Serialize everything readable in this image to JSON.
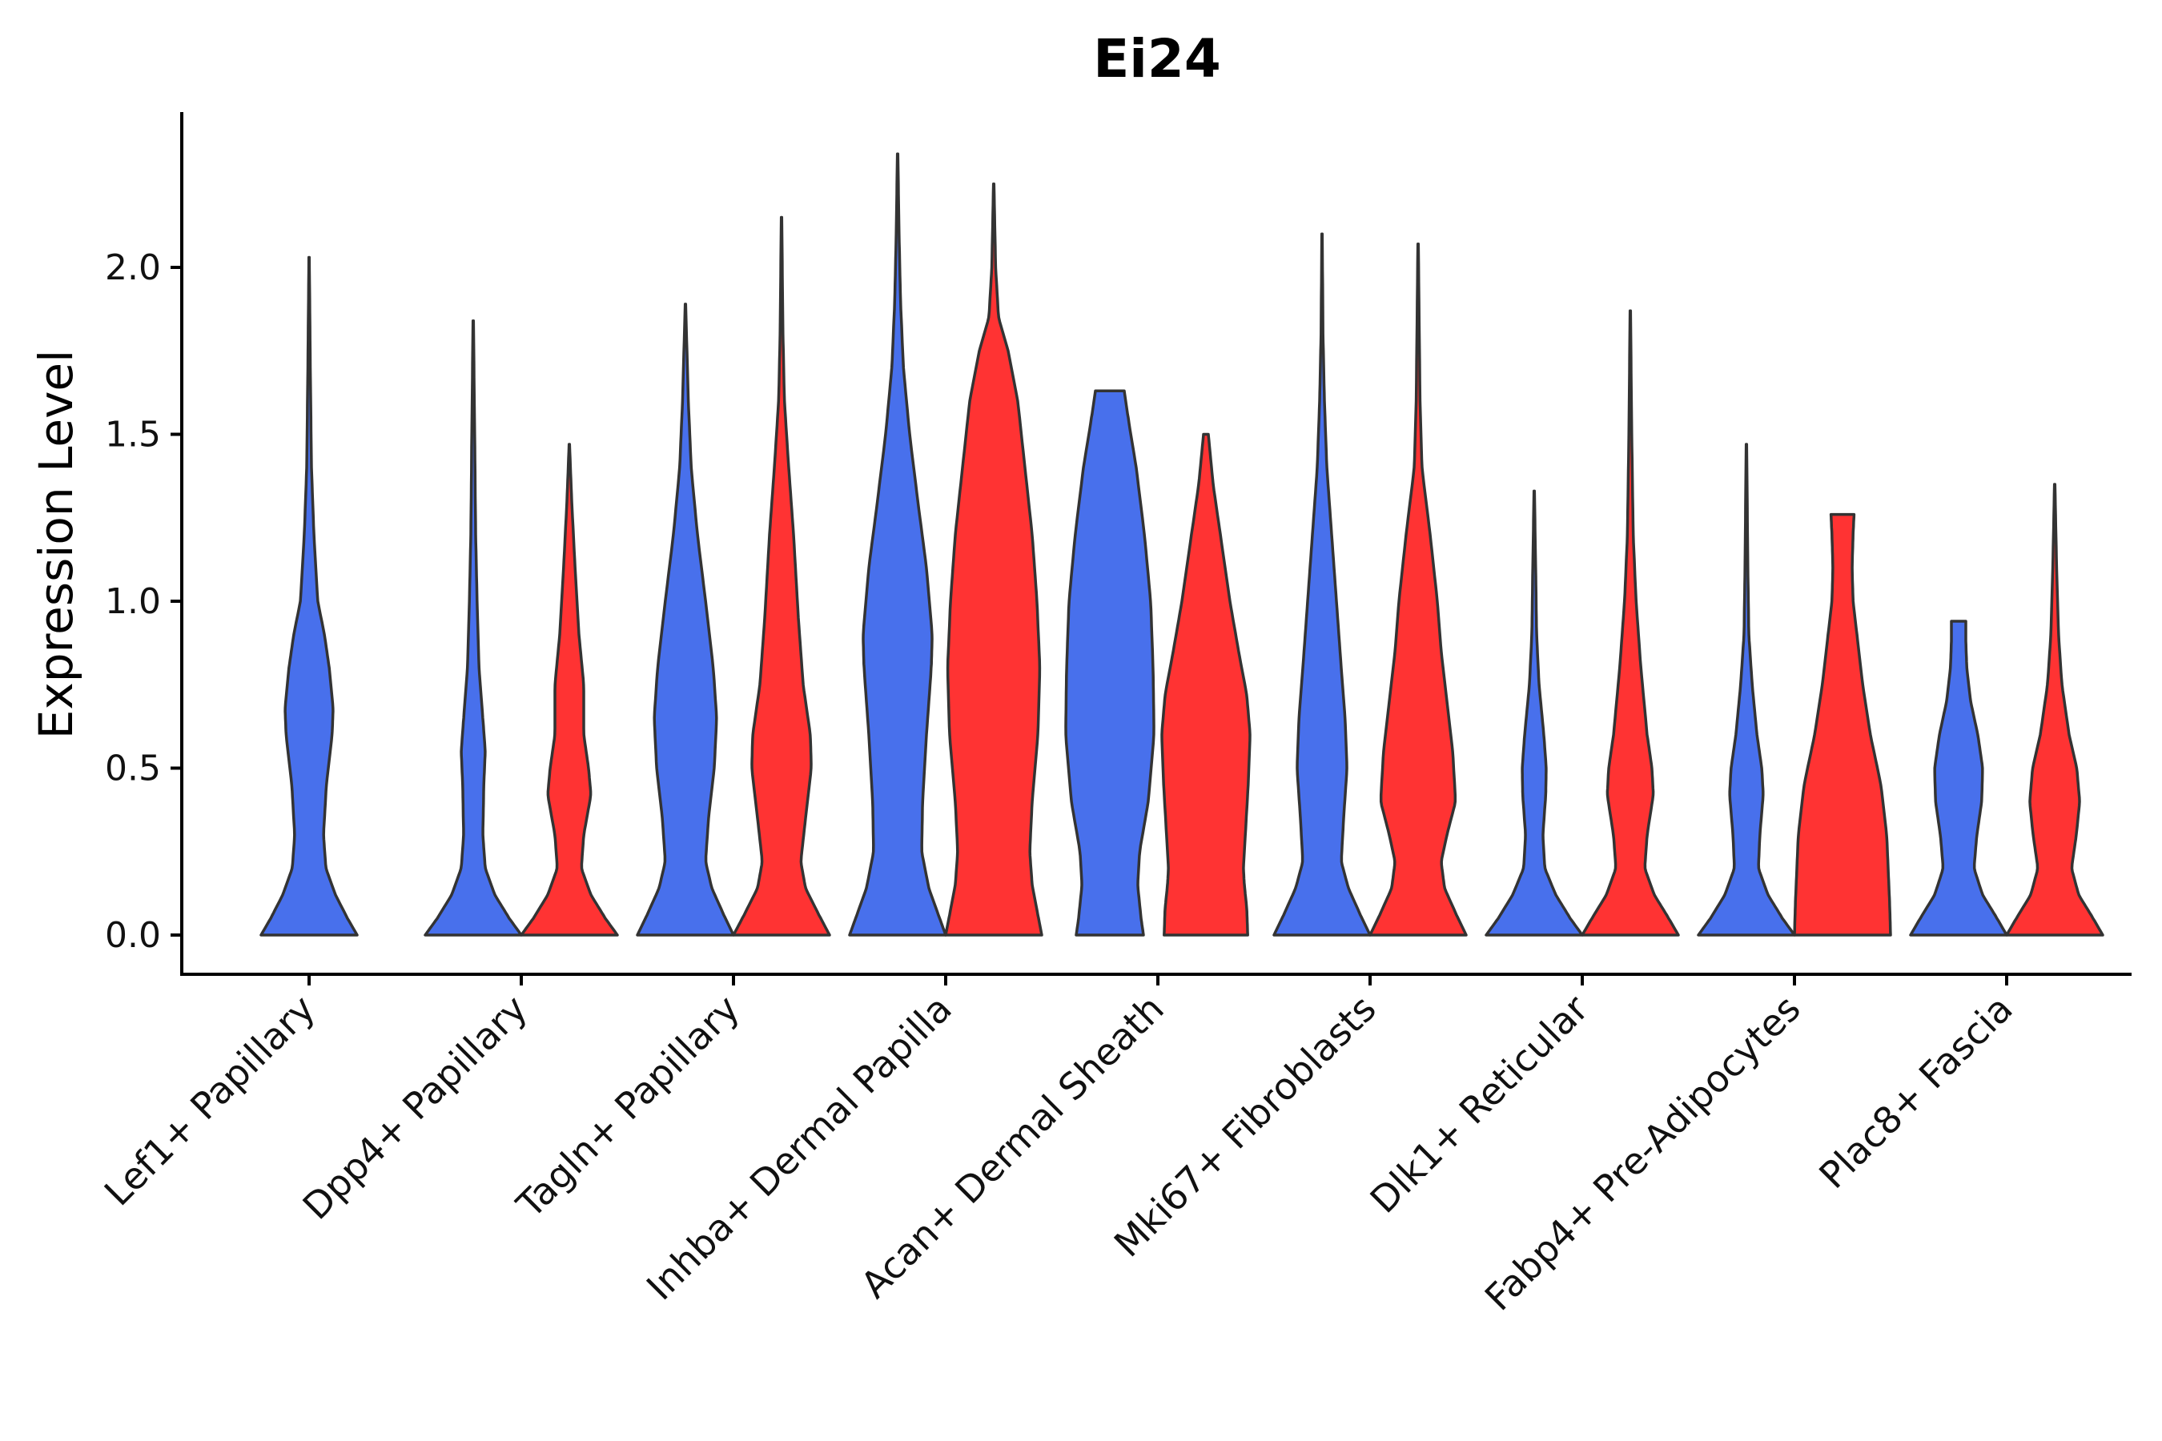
{
  "chart_data": {
    "type": "violin",
    "title": "Ei24",
    "xlabel": "",
    "ylabel": "Expression Level",
    "ylim": [
      -0.12,
      2.45
    ],
    "yticks": [
      0.0,
      0.5,
      1.0,
      1.5,
      2.0
    ],
    "ytick_labels": [
      "0.0",
      "0.5",
      "1.0",
      "1.5",
      "2.0"
    ],
    "grid": false,
    "legend": "none",
    "colors": {
      "group_a": "#4870ec",
      "group_b": "#ff3333"
    },
    "categories": [
      "Lef1+ Papillary",
      "Dpp4+ Papillary",
      "Tagln+ Papillary",
      "Inhba+ Dermal Papilla",
      "Acan+ Dermal Sheath",
      "Mki67+ Fibroblasts",
      "Dlk1+ Reticular",
      "Fabp4+ Pre-Adipocytes",
      "Plac8+ Fascia"
    ],
    "violins": [
      {
        "category": "Lef1+ Papillary",
        "group": "a",
        "offset": 0,
        "max": 2.03,
        "profile": [
          [
            0,
            1.0
          ],
          [
            0.05,
            0.8
          ],
          [
            0.12,
            0.55
          ],
          [
            0.2,
            0.35
          ],
          [
            0.3,
            0.3
          ],
          [
            0.45,
            0.36
          ],
          [
            0.6,
            0.48
          ],
          [
            0.68,
            0.5
          ],
          [
            0.8,
            0.42
          ],
          [
            0.9,
            0.32
          ],
          [
            1.0,
            0.18
          ],
          [
            1.2,
            0.1
          ],
          [
            1.4,
            0.05
          ],
          [
            1.7,
            0.025
          ],
          [
            2.03,
            0.005
          ]
        ]
      },
      {
        "category": "Dpp4+ Papillary",
        "group": "a",
        "offset": -0.5,
        "max": 1.84,
        "profile": [
          [
            0,
            1.0
          ],
          [
            0.05,
            0.75
          ],
          [
            0.12,
            0.45
          ],
          [
            0.2,
            0.25
          ],
          [
            0.3,
            0.2
          ],
          [
            0.45,
            0.22
          ],
          [
            0.55,
            0.25
          ],
          [
            0.65,
            0.2
          ],
          [
            0.8,
            0.12
          ],
          [
            1.0,
            0.08
          ],
          [
            1.2,
            0.05
          ],
          [
            1.5,
            0.03
          ],
          [
            1.84,
            0.005
          ]
        ]
      },
      {
        "category": "Dpp4+ Papillary",
        "group": "b",
        "offset": 0.5,
        "max": 1.47,
        "profile": [
          [
            0,
            1.0
          ],
          [
            0.05,
            0.75
          ],
          [
            0.12,
            0.45
          ],
          [
            0.2,
            0.25
          ],
          [
            0.3,
            0.3
          ],
          [
            0.42,
            0.45
          ],
          [
            0.5,
            0.4
          ],
          [
            0.6,
            0.3
          ],
          [
            0.75,
            0.3
          ],
          [
            0.9,
            0.2
          ],
          [
            1.1,
            0.12
          ],
          [
            1.3,
            0.05
          ],
          [
            1.47,
            0.005
          ]
        ]
      },
      {
        "category": "Tagln+ Papillary",
        "group": "a",
        "offset": -0.5,
        "max": 1.89,
        "profile": [
          [
            0,
            1.0
          ],
          [
            0.06,
            0.8
          ],
          [
            0.14,
            0.55
          ],
          [
            0.22,
            0.42
          ],
          [
            0.35,
            0.48
          ],
          [
            0.5,
            0.6
          ],
          [
            0.65,
            0.65
          ],
          [
            0.8,
            0.58
          ],
          [
            1.0,
            0.42
          ],
          [
            1.2,
            0.25
          ],
          [
            1.4,
            0.12
          ],
          [
            1.6,
            0.06
          ],
          [
            1.89,
            0.005
          ]
        ]
      },
      {
        "category": "Tagln+ Papillary",
        "group": "b",
        "offset": 0.5,
        "max": 2.15,
        "profile": [
          [
            0,
            1.0
          ],
          [
            0.06,
            0.78
          ],
          [
            0.14,
            0.5
          ],
          [
            0.22,
            0.4
          ],
          [
            0.35,
            0.5
          ],
          [
            0.5,
            0.62
          ],
          [
            0.6,
            0.6
          ],
          [
            0.75,
            0.45
          ],
          [
            0.95,
            0.35
          ],
          [
            1.2,
            0.25
          ],
          [
            1.4,
            0.15
          ],
          [
            1.6,
            0.06
          ],
          [
            1.8,
            0.03
          ],
          [
            2.15,
            0.005
          ]
        ]
      },
      {
        "category": "Inhba+ Dermal Papilla",
        "group": "a",
        "offset": -0.5,
        "max": 2.34,
        "profile": [
          [
            0,
            1.0
          ],
          [
            0.06,
            0.85
          ],
          [
            0.14,
            0.65
          ],
          [
            0.25,
            0.5
          ],
          [
            0.4,
            0.52
          ],
          [
            0.6,
            0.6
          ],
          [
            0.8,
            0.7
          ],
          [
            0.9,
            0.72
          ],
          [
            1.1,
            0.6
          ],
          [
            1.3,
            0.42
          ],
          [
            1.5,
            0.25
          ],
          [
            1.7,
            0.12
          ],
          [
            1.9,
            0.06
          ],
          [
            2.1,
            0.03
          ],
          [
            2.34,
            0.005
          ]
        ]
      },
      {
        "category": "Inhba+ Dermal Papilla",
        "group": "b",
        "offset": 0.5,
        "max": 2.25,
        "profile": [
          [
            0,
            1.0
          ],
          [
            0.06,
            0.92
          ],
          [
            0.15,
            0.8
          ],
          [
            0.25,
            0.75
          ],
          [
            0.4,
            0.8
          ],
          [
            0.6,
            0.92
          ],
          [
            0.8,
            0.96
          ],
          [
            1.0,
            0.9
          ],
          [
            1.2,
            0.8
          ],
          [
            1.4,
            0.65
          ],
          [
            1.6,
            0.5
          ],
          [
            1.75,
            0.3
          ],
          [
            1.85,
            0.1
          ],
          [
            2.0,
            0.04
          ],
          [
            2.25,
            0.005
          ]
        ]
      },
      {
        "category": "Acan+ Dermal Sheath",
        "group": "a",
        "offset": -0.5,
        "max": 1.63,
        "profile": [
          [
            0,
            0.7
          ],
          [
            0.05,
            0.65
          ],
          [
            0.15,
            0.58
          ],
          [
            0.25,
            0.62
          ],
          [
            0.4,
            0.8
          ],
          [
            0.6,
            0.92
          ],
          [
            0.8,
            0.9
          ],
          [
            1.0,
            0.85
          ],
          [
            1.2,
            0.72
          ],
          [
            1.4,
            0.55
          ],
          [
            1.55,
            0.38
          ],
          [
            1.63,
            0.3
          ]
        ]
      },
      {
        "category": "Acan+ Dermal Sheath",
        "group": "b",
        "offset": 0.5,
        "max": 1.5,
        "profile": [
          [
            0,
            0.87
          ],
          [
            0.08,
            0.85
          ],
          [
            0.15,
            0.8
          ],
          [
            0.2,
            0.78
          ],
          [
            0.3,
            0.82
          ],
          [
            0.45,
            0.88
          ],
          [
            0.6,
            0.92
          ],
          [
            0.72,
            0.85
          ],
          [
            0.85,
            0.68
          ],
          [
            1.0,
            0.5
          ],
          [
            1.2,
            0.3
          ],
          [
            1.35,
            0.15
          ],
          [
            1.5,
            0.05
          ]
        ]
      },
      {
        "category": "Mki67+ Fibroblasts",
        "group": "a",
        "offset": -0.5,
        "max": 2.1,
        "profile": [
          [
            0,
            1.0
          ],
          [
            0.06,
            0.8
          ],
          [
            0.14,
            0.55
          ],
          [
            0.22,
            0.4
          ],
          [
            0.35,
            0.45
          ],
          [
            0.5,
            0.52
          ],
          [
            0.65,
            0.48
          ],
          [
            0.8,
            0.4
          ],
          [
            1.0,
            0.3
          ],
          [
            1.2,
            0.2
          ],
          [
            1.4,
            0.1
          ],
          [
            1.6,
            0.05
          ],
          [
            1.8,
            0.02
          ],
          [
            2.1,
            0.005
          ]
        ]
      },
      {
        "category": "Mki67+ Fibroblasts",
        "group": "b",
        "offset": 0.5,
        "max": 2.07,
        "profile": [
          [
            0,
            1.0
          ],
          [
            0.06,
            0.8
          ],
          [
            0.14,
            0.55
          ],
          [
            0.22,
            0.48
          ],
          [
            0.3,
            0.6
          ],
          [
            0.4,
            0.78
          ],
          [
            0.55,
            0.72
          ],
          [
            0.7,
            0.6
          ],
          [
            0.85,
            0.48
          ],
          [
            1.0,
            0.4
          ],
          [
            1.2,
            0.25
          ],
          [
            1.4,
            0.08
          ],
          [
            1.6,
            0.04
          ],
          [
            2.07,
            0.005
          ]
        ]
      },
      {
        "category": "Dlk1+ Reticular",
        "group": "a",
        "offset": -0.5,
        "max": 1.33,
        "profile": [
          [
            0,
            1.0
          ],
          [
            0.05,
            0.75
          ],
          [
            0.12,
            0.45
          ],
          [
            0.2,
            0.22
          ],
          [
            0.3,
            0.18
          ],
          [
            0.42,
            0.24
          ],
          [
            0.5,
            0.25
          ],
          [
            0.6,
            0.2
          ],
          [
            0.75,
            0.1
          ],
          [
            0.9,
            0.05
          ],
          [
            1.1,
            0.03
          ],
          [
            1.33,
            0.005
          ]
        ]
      },
      {
        "category": "Dlk1+ Reticular",
        "group": "b",
        "offset": 0.5,
        "max": 1.87,
        "profile": [
          [
            0,
            1.0
          ],
          [
            0.05,
            0.8
          ],
          [
            0.12,
            0.5
          ],
          [
            0.2,
            0.3
          ],
          [
            0.3,
            0.35
          ],
          [
            0.42,
            0.48
          ],
          [
            0.5,
            0.45
          ],
          [
            0.6,
            0.35
          ],
          [
            0.8,
            0.22
          ],
          [
            1.0,
            0.12
          ],
          [
            1.2,
            0.06
          ],
          [
            1.5,
            0.03
          ],
          [
            1.87,
            0.005
          ]
        ]
      },
      {
        "category": "Fabp4+ Pre-Adipocytes",
        "group": "a",
        "offset": -0.5,
        "max": 1.47,
        "profile": [
          [
            0,
            1.0
          ],
          [
            0.05,
            0.75
          ],
          [
            0.12,
            0.45
          ],
          [
            0.2,
            0.25
          ],
          [
            0.3,
            0.28
          ],
          [
            0.42,
            0.35
          ],
          [
            0.5,
            0.32
          ],
          [
            0.6,
            0.22
          ],
          [
            0.75,
            0.12
          ],
          [
            0.9,
            0.05
          ],
          [
            1.1,
            0.03
          ],
          [
            1.47,
            0.005
          ]
        ]
      },
      {
        "category": "Fabp4+ Pre-Adipocytes",
        "group": "b",
        "offset": 0.5,
        "max": 1.26,
        "profile": [
          [
            0,
            1.0
          ],
          [
            0.1,
            0.98
          ],
          [
            0.2,
            0.95
          ],
          [
            0.3,
            0.92
          ],
          [
            0.45,
            0.8
          ],
          [
            0.6,
            0.58
          ],
          [
            0.75,
            0.42
          ],
          [
            0.9,
            0.3
          ],
          [
            1.0,
            0.22
          ],
          [
            1.1,
            0.2
          ],
          [
            1.2,
            0.22
          ],
          [
            1.26,
            0.24
          ]
        ]
      },
      {
        "category": "Plac8+ Fascia",
        "group": "a",
        "offset": -0.5,
        "max": 0.94,
        "profile": [
          [
            0,
            1.0
          ],
          [
            0.05,
            0.8
          ],
          [
            0.12,
            0.5
          ],
          [
            0.2,
            0.32
          ],
          [
            0.3,
            0.38
          ],
          [
            0.4,
            0.48
          ],
          [
            0.5,
            0.5
          ],
          [
            0.6,
            0.4
          ],
          [
            0.7,
            0.25
          ],
          [
            0.8,
            0.17
          ],
          [
            0.88,
            0.15
          ],
          [
            0.94,
            0.15
          ]
        ]
      },
      {
        "category": "Plac8+ Fascia",
        "group": "b",
        "offset": 0.5,
        "max": 1.35,
        "profile": [
          [
            0,
            1.0
          ],
          [
            0.05,
            0.8
          ],
          [
            0.12,
            0.5
          ],
          [
            0.2,
            0.35
          ],
          [
            0.3,
            0.45
          ],
          [
            0.4,
            0.52
          ],
          [
            0.5,
            0.46
          ],
          [
            0.6,
            0.3
          ],
          [
            0.75,
            0.15
          ],
          [
            0.9,
            0.08
          ],
          [
            1.1,
            0.04
          ],
          [
            1.35,
            0.005
          ]
        ]
      }
    ]
  }
}
